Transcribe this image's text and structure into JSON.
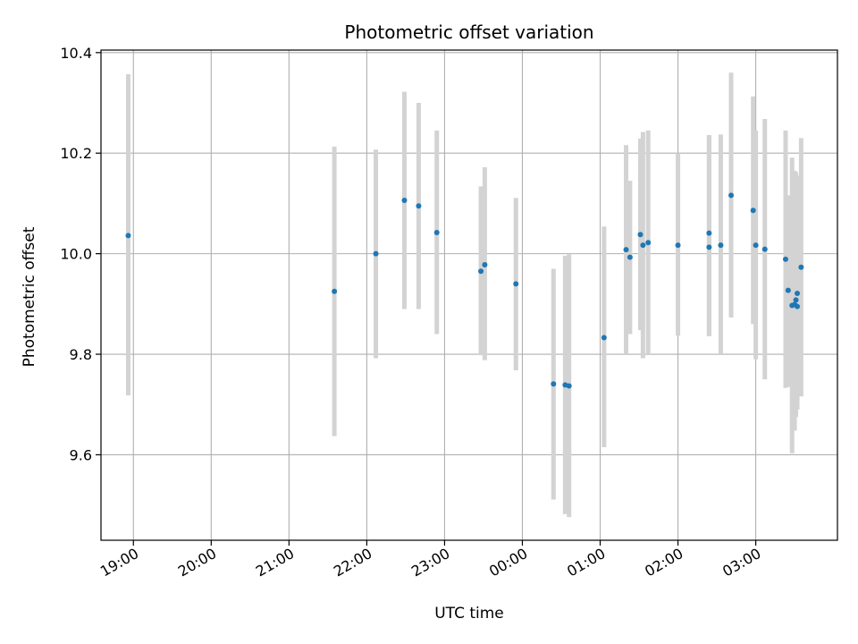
{
  "chart_data": {
    "type": "scatter",
    "title": "Photometric offset variation",
    "xlabel": "UTC time",
    "ylabel": "Photometric offset",
    "grid": true,
    "marker_color": "#1f77b4",
    "errorbar_color": "#d3d3d3",
    "xlim": [
      "18:35",
      "04:03"
    ],
    "ylim": [
      9.43,
      10.405
    ],
    "x_ticks": [
      "19:00",
      "20:00",
      "21:00",
      "22:00",
      "23:00",
      "00:00",
      "01:00",
      "02:00",
      "03:00"
    ],
    "y_ticks": [
      "9.6",
      "9.8",
      "10.0",
      "10.2",
      "10.4"
    ],
    "points": [
      {
        "x": "18:56",
        "y": 10.036,
        "err_low": 9.718,
        "err_high": 10.357
      },
      {
        "x": "21:35",
        "y": 9.925,
        "err_low": 9.637,
        "err_high": 10.213
      },
      {
        "x": "22:07",
        "y": 10.0,
        "err_low": 9.792,
        "err_high": 10.207
      },
      {
        "x": "22:29",
        "y": 10.106,
        "err_low": 9.89,
        "err_high": 10.322
      },
      {
        "x": "22:40",
        "y": 10.095,
        "err_low": 9.89,
        "err_high": 10.3
      },
      {
        "x": "22:54",
        "y": 10.042,
        "err_low": 9.84,
        "err_high": 10.245
      },
      {
        "x": "23:28",
        "y": 9.965,
        "err_low": 9.798,
        "err_high": 10.134
      },
      {
        "x": "23:31",
        "y": 9.978,
        "err_low": 9.788,
        "err_high": 10.172
      },
      {
        "x": "23:55",
        "y": 9.94,
        "err_low": 9.768,
        "err_high": 10.111
      },
      {
        "x": "00:24",
        "y": 9.741,
        "err_low": 9.511,
        "err_high": 9.97
      },
      {
        "x": "00:33",
        "y": 9.739,
        "err_low": 9.482,
        "err_high": 9.996
      },
      {
        "x": "00:36",
        "y": 9.737,
        "err_low": 9.476,
        "err_high": 9.999
      },
      {
        "x": "01:03",
        "y": 9.833,
        "err_low": 9.615,
        "err_high": 10.054
      },
      {
        "x": "01:20",
        "y": 10.008,
        "err_low": 9.8,
        "err_high": 10.216
      },
      {
        "x": "01:23",
        "y": 9.993,
        "err_low": 9.84,
        "err_high": 10.145
      },
      {
        "x": "01:31",
        "y": 10.038,
        "err_low": 9.848,
        "err_high": 10.229
      },
      {
        "x": "01:33",
        "y": 10.017,
        "err_low": 9.792,
        "err_high": 10.242
      },
      {
        "x": "01:37",
        "y": 10.022,
        "err_low": 9.8,
        "err_high": 10.245
      },
      {
        "x": "02:00",
        "y": 10.017,
        "err_low": 9.837,
        "err_high": 10.2
      },
      {
        "x": "02:24",
        "y": 10.041,
        "err_low": 9.836,
        "err_high": 10.236
      },
      {
        "x": "02:24",
        "y": 10.013,
        "err_low": 9.836,
        "err_high": 10.236
      },
      {
        "x": "02:33",
        "y": 10.017,
        "err_low": 9.8,
        "err_high": 10.237
      },
      {
        "x": "02:41",
        "y": 10.116,
        "err_low": 9.873,
        "err_high": 10.36
      },
      {
        "x": "02:58",
        "y": 10.086,
        "err_low": 9.86,
        "err_high": 10.313
      },
      {
        "x": "03:00",
        "y": 10.017,
        "err_low": 9.79,
        "err_high": 10.245
      },
      {
        "x": "03:07",
        "y": 10.009,
        "err_low": 9.75,
        "err_high": 10.268
      },
      {
        "x": "03:23",
        "y": 9.989,
        "err_low": 9.733,
        "err_high": 10.245
      },
      {
        "x": "03:25",
        "y": 9.927,
        "err_low": 9.735,
        "err_high": 10.116
      },
      {
        "x": "03:28",
        "y": 9.897,
        "err_low": 9.603,
        "err_high": 10.191
      },
      {
        "x": "03:30",
        "y": 9.899,
        "err_low": 9.648,
        "err_high": 10.165
      },
      {
        "x": "03:31",
        "y": 9.908,
        "err_low": 9.675,
        "err_high": 10.162
      },
      {
        "x": "03:32",
        "y": 9.895,
        "err_low": 9.69,
        "err_high": 10.155
      },
      {
        "x": "03:32",
        "y": 9.921,
        "err_low": 9.7,
        "err_high": 10.14
      },
      {
        "x": "03:35",
        "y": 9.973,
        "err_low": 9.716,
        "err_high": 10.23
      }
    ]
  }
}
